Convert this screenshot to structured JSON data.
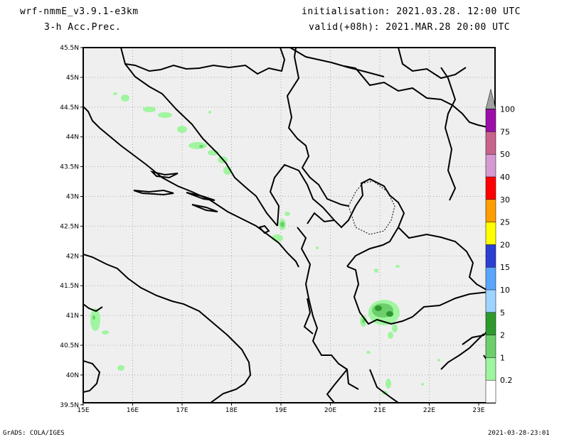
{
  "header": {
    "model": "wrf-nmmE_v3.9.1-e3km",
    "field": "3-h Acc.Prec.",
    "init": "initialisation: 2021.03.28.  12:00 UTC",
    "valid": "valid(+08h): 2021.MAR.28 20:00 UTC"
  },
  "footer": {
    "left": "GrADS: COLA/IGES",
    "right": "2021-03-28-23:01"
  },
  "map": {
    "lat_labels": [
      "45.5N",
      "45N",
      "44.5N",
      "44N",
      "43.5N",
      "43N",
      "42.5N",
      "42N",
      "41.5N",
      "41N",
      "40.5N",
      "40N",
      "39.5N"
    ],
    "lon_labels": [
      "15E",
      "16E",
      "17E",
      "18E",
      "19E",
      "20E",
      "21E",
      "22E",
      "23E"
    ],
    "background_color": "#efefef",
    "land_edge_color": "#000000"
  },
  "colorbar": {
    "labels": [
      "0.2",
      "1",
      "2",
      "5",
      "10",
      "15",
      "20",
      "25",
      "30",
      "40",
      "50",
      "75",
      "100"
    ],
    "colors": [
      "#ffffff",
      "#a0f5a0",
      "#6ccf6c",
      "#2e9a2e",
      "#9ed4ff",
      "#5aa6ff",
      "#2d3fd2",
      "#ffff00",
      "#ff9e00",
      "#ff0000",
      "#d59ad3",
      "#c8648c",
      "#9b0fa8",
      "#a0a0a0"
    ]
  }
}
